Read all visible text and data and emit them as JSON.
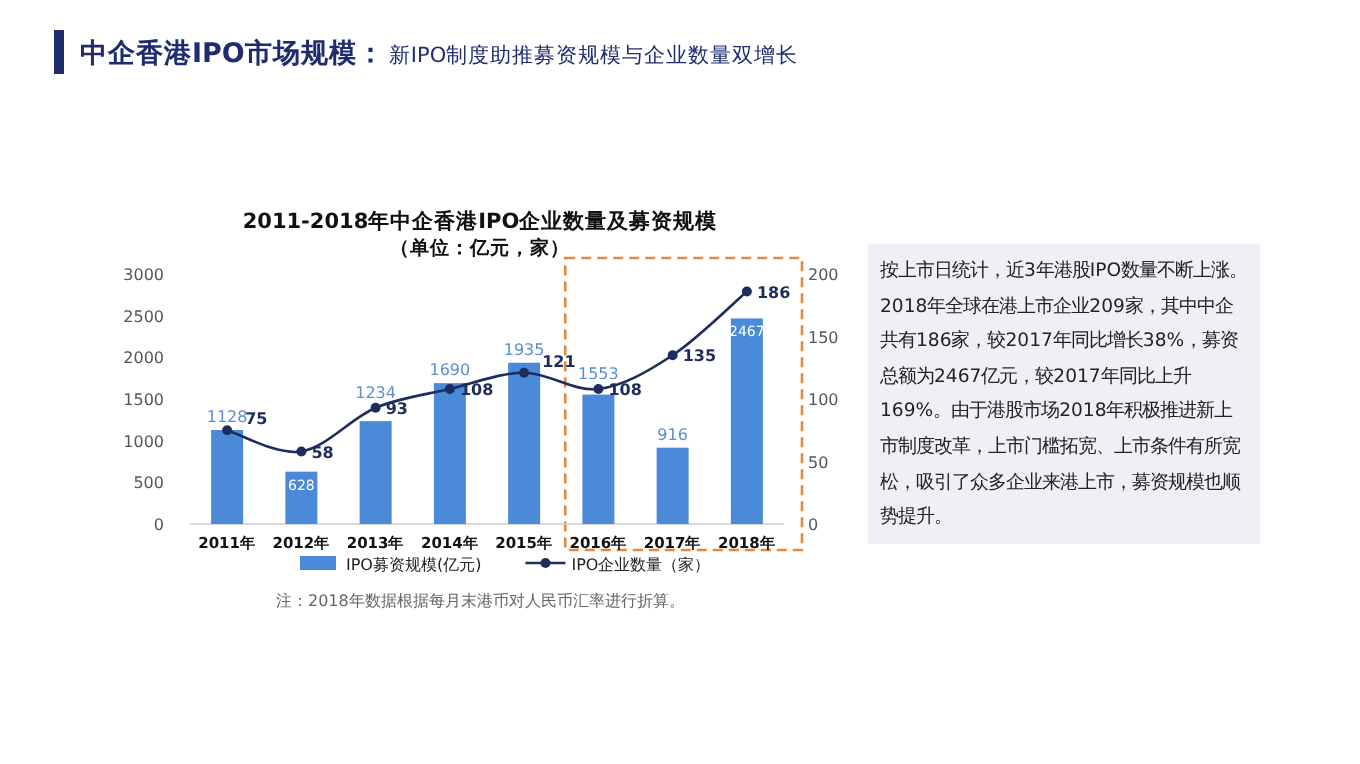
{
  "chart_data": {
    "type": "bar",
    "title": "2011-2018年中企香港IPO企业数量及募资规模",
    "subtitle": "（单位：亿元，家）",
    "categories": [
      "2011年",
      "2012年",
      "2013年",
      "2014年",
      "2015年",
      "2016年",
      "2017年",
      "2018年"
    ],
    "series": [
      {
        "name": "IPO募资规模(亿元)",
        "color": "#4a8ad8",
        "values": [
          1128,
          628,
          1234,
          1690,
          1935,
          1553,
          916,
          2467
        ]
      },
      {
        "name": "IPO企业数量（家）",
        "type": "line",
        "axis": "y2",
        "color": "#1f2d5c",
        "marker": "circle",
        "values": [
          75,
          58,
          93,
          108,
          121,
          108,
          135,
          186
        ]
      }
    ],
    "ylim": [
      0,
      3000
    ],
    "yticks": [
      0,
      500,
      1000,
      1500,
      2000,
      2500,
      3000
    ],
    "y2lim": [
      0,
      200
    ],
    "y2ticks": [
      0,
      50,
      100,
      150,
      200
    ],
    "data_labels": true,
    "legend": "bottom",
    "annotations": [
      "中企香港IPO市场规模：",
      "新IPO制度助推募资规模与企业数量双增长",
      "按上市日统计，近3年港股IPO数量不断上涨。2018年全球在港上市企业209家，其中中企共有186家，较2017年同比增长38%，募资总额为2467亿元，较2017年同比上升169%。由于港股市场2018年积极推进新上市制度改革，上市门槛拓宽、上市条件有所宽松，吸引了众多企业来港上市，募资规模也顺势提升。",
      "注：2018年数据根据每月末港币对人民币汇率进行折算。"
    ]
  }
}
